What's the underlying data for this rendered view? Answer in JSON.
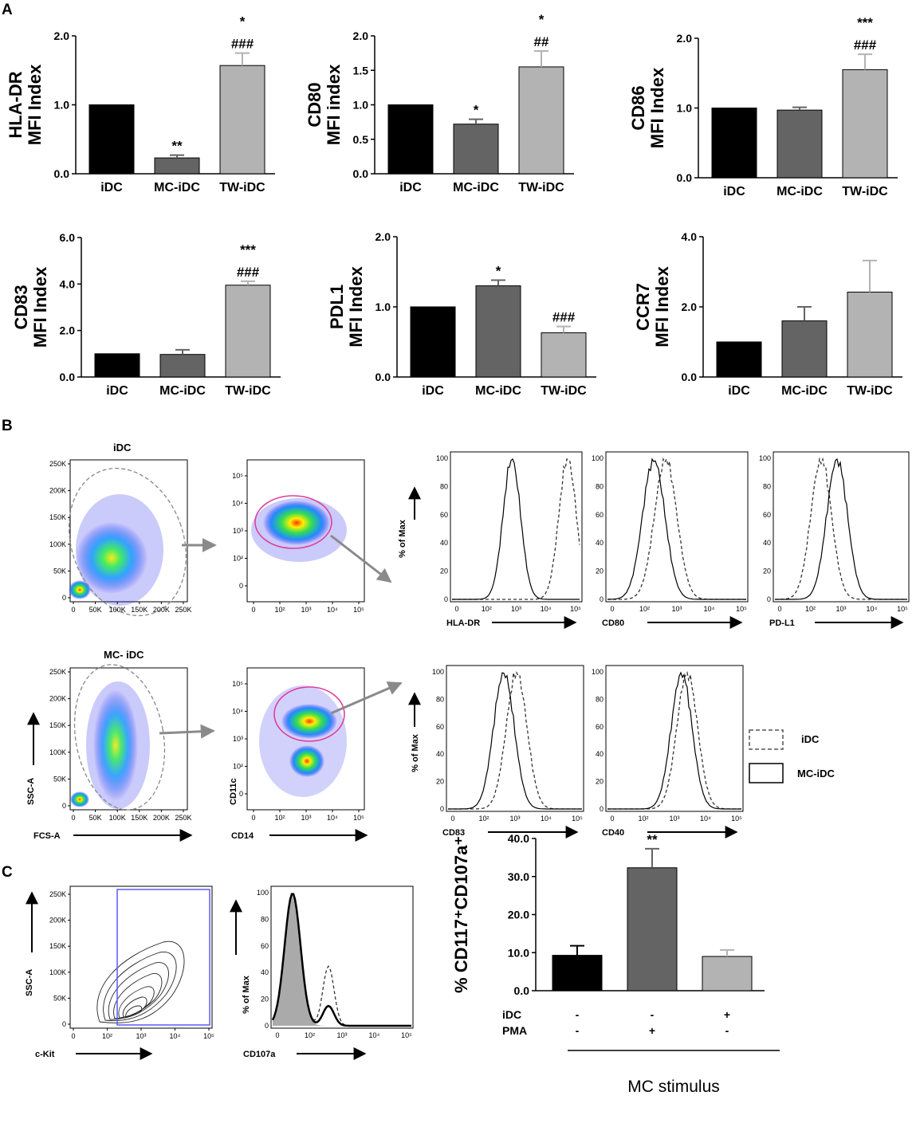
{
  "panel_labels": {
    "a": "A",
    "b": "B",
    "c": "C"
  },
  "colors": {
    "idc": "#000000",
    "mc_idc": "#646464",
    "tw_idc": "#b3b3b3",
    "gate_pink": "#e0409a",
    "gate_blue": "#5a5aff"
  },
  "chart_data": [
    {
      "type": "bar",
      "panel": "A",
      "ylabel_top": "HLA-DR",
      "ylabel_bottom": "MFI Index",
      "categories": [
        "iDC",
        "MC-iDC",
        "TW-iDC"
      ],
      "values": [
        1.0,
        0.23,
        1.57
      ],
      "errors": [
        0,
        0.04,
        0.18
      ],
      "ylim": [
        0,
        2
      ],
      "yticks": [
        "0.0",
        "1.0",
        "2.0"
      ],
      "annot_top": [
        "",
        "**",
        "*"
      ],
      "annot_bottom": [
        "",
        "",
        "###"
      ]
    },
    {
      "type": "bar",
      "panel": "A",
      "ylabel_top": "CD80",
      "ylabel_bottom": "MFI index",
      "categories": [
        "iDC",
        "MC-iDC",
        "TW-iDC"
      ],
      "values": [
        1.0,
        0.72,
        1.55
      ],
      "errors": [
        0,
        0.07,
        0.23
      ],
      "ylim": [
        0,
        2
      ],
      "yticks": [
        "0.0",
        "0.5",
        "1.0",
        "1.5",
        "2.0"
      ],
      "annot_top": [
        "",
        "*",
        "*"
      ],
      "annot_bottom": [
        "",
        "",
        "##"
      ]
    },
    {
      "type": "bar",
      "panel": "A",
      "ylabel_top": "CD86",
      "ylabel_bottom": "MFI Index",
      "categories": [
        "iDC",
        "MC-iDC",
        "TW-iDC"
      ],
      "values": [
        1.0,
        0.97,
        1.55
      ],
      "errors": [
        0,
        0.04,
        0.22
      ],
      "ylim": [
        0,
        2
      ],
      "yticks": [
        "0.0",
        "1.0",
        "2.0"
      ],
      "annot_top": [
        "",
        "",
        "***"
      ],
      "annot_bottom": [
        "",
        "",
        "###"
      ]
    },
    {
      "type": "bar",
      "panel": "A",
      "ylabel_top": "CD83",
      "ylabel_bottom": "MFI Index",
      "categories": [
        "iDC",
        "MC-iDC",
        "TW-iDC"
      ],
      "values": [
        1.0,
        0.97,
        3.95
      ],
      "errors": [
        0,
        0.2,
        0.17
      ],
      "ylim": [
        0,
        6
      ],
      "yticks": [
        "0.0",
        "2.0",
        "4.0",
        "6.0"
      ],
      "annot_top": [
        "",
        "",
        "***"
      ],
      "annot_bottom": [
        "",
        "",
        "###"
      ]
    },
    {
      "type": "bar",
      "panel": "A",
      "ylabel_top": "PDL1",
      "ylabel_bottom": "MFI Index",
      "categories": [
        "iDC",
        "MC-iDC",
        "TW-iDC"
      ],
      "values": [
        1.0,
        1.3,
        0.63
      ],
      "errors": [
        0,
        0.08,
        0.09
      ],
      "ylim": [
        0,
        2
      ],
      "yticks": [
        "0.0",
        "1.0",
        "2.0"
      ],
      "annot_top": [
        "",
        "*",
        ""
      ],
      "annot_bottom": [
        "",
        "",
        "###"
      ]
    },
    {
      "type": "bar",
      "panel": "A",
      "ylabel_top": "CCR7",
      "ylabel_bottom": "MFI Index",
      "categories": [
        "iDC",
        "MC-iDC",
        "TW-iDC"
      ],
      "values": [
        1.0,
        1.6,
        2.42
      ],
      "errors": [
        0,
        0.4,
        0.9
      ],
      "ylim": [
        0,
        4
      ],
      "yticks": [
        "0.0",
        "2.0",
        "4.0"
      ],
      "annot_top": [
        "",
        "",
        ""
      ],
      "annot_bottom": [
        "",
        "",
        ""
      ]
    },
    {
      "type": "bar",
      "panel": "C",
      "ylabel": "% CD117⁺CD107a⁺",
      "categories": [
        "iDC -, PMA -",
        "iDC -, PMA +",
        "iDC +, PMA -"
      ],
      "values": [
        9.3,
        32.3,
        9.0
      ],
      "errors": [
        2.5,
        5.0,
        1.7
      ],
      "ylim": [
        0,
        40
      ],
      "yticks": [
        "0.0",
        "10.0",
        "20.0",
        "30.0",
        "40.0"
      ],
      "annot_top": [
        "",
        "**",
        ""
      ],
      "condition_rows": [
        {
          "label": "iDC",
          "signs": [
            "-",
            "-",
            "+"
          ]
        },
        {
          "label": "PMA",
          "signs": [
            "-",
            "+",
            "-"
          ]
        }
      ],
      "xlabel": "MC stimulus"
    }
  ],
  "flow_b": {
    "row1_title": "iDC",
    "row2_title": "MC- iDC",
    "scatter_yticks": [
      "250K",
      "200K",
      "150K",
      "100K",
      "50K",
      "0"
    ],
    "scatter_xticks": [
      "0",
      "50K",
      "100K",
      "150K",
      "200K",
      "250K"
    ],
    "log_ticks_y": [
      "10⁵",
      "10⁴",
      "10³",
      "10²",
      "0"
    ],
    "log_ticks_x": [
      "0",
      "10²",
      "10³",
      "10⁴",
      "10⁵"
    ],
    "hist_yticks": [
      "100",
      "80",
      "60",
      "40",
      "20",
      "0"
    ],
    "hist_xticks": [
      "0",
      "10²",
      "10³",
      "10⁴",
      "10⁵"
    ],
    "axis_ssc": "SSC-A",
    "axis_fsc": "FCS-A",
    "axis_cd11c": "CD11c",
    "axis_cd14": "CD14",
    "axis_pct_max": "% of Max",
    "row1_hists": [
      "HLA-DR",
      "CD80",
      "PD-L1"
    ],
    "row2_hists": [
      "CD83",
      "CD40"
    ],
    "legend": {
      "dashed": "iDC",
      "solid": "MC-iDC"
    }
  },
  "flow_c": {
    "contour_yticks": [
      "250K",
      "200K",
      "150K",
      "100K",
      "50K",
      "0"
    ],
    "contour_xticks": [
      "0",
      "10²",
      "10³",
      "10⁴",
      "10⁵"
    ],
    "axis_ssc": "SSC-A",
    "axis_ckit": "c-Kit",
    "hist_yticks": [
      "100",
      "80",
      "60",
      "40",
      "20",
      "0"
    ],
    "hist_xticks": [
      "0",
      "10²",
      "10³",
      "10⁴",
      "10⁵"
    ],
    "axis_pct_max": "% of Max",
    "axis_cd107a": "CD107a"
  }
}
